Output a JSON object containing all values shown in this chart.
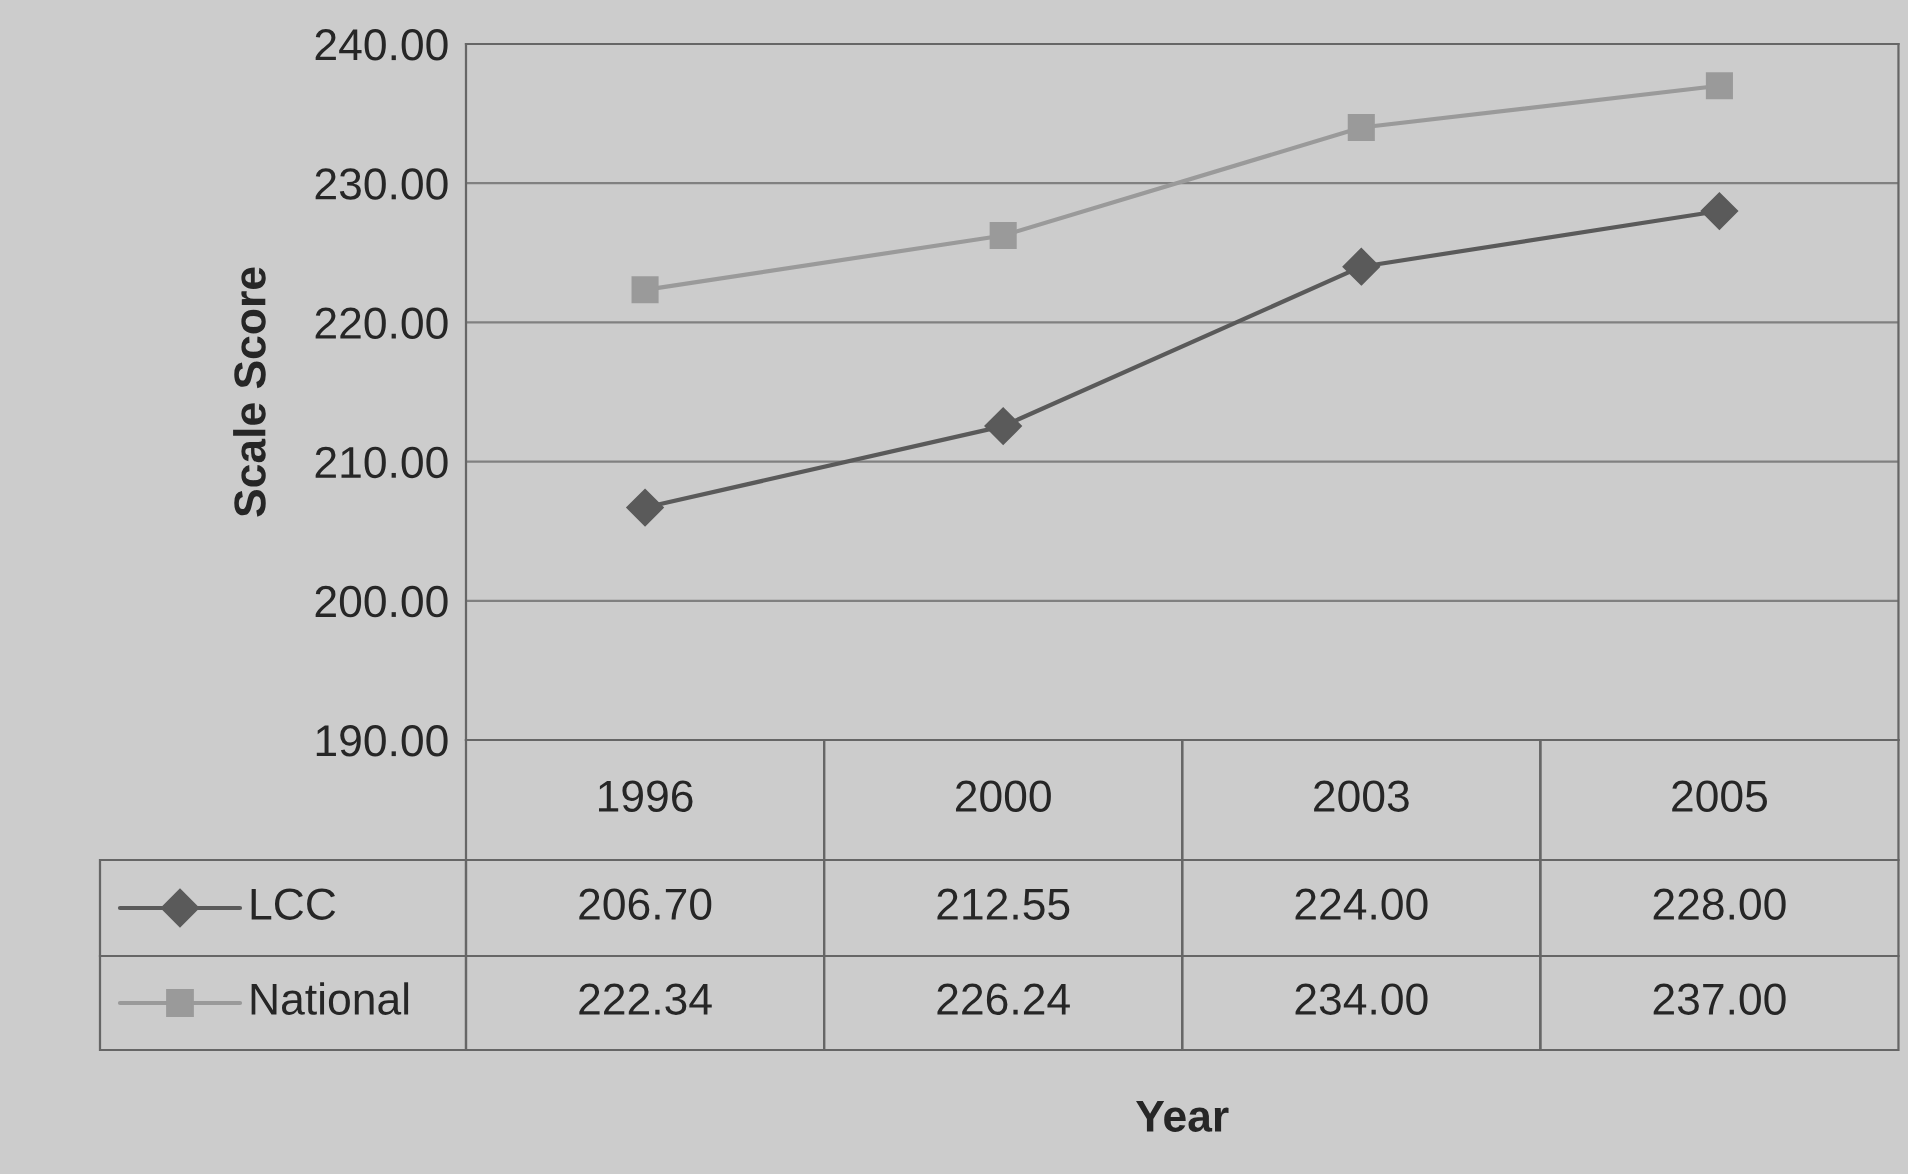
{
  "chart_data": {
    "type": "line",
    "categories": [
      "1996",
      "2000",
      "2003",
      "2005"
    ],
    "annotations": [
      "Year"
    ],
    "ylabel": "Scale Score",
    "series": [
      {
        "name": "LCC",
        "color": "#5a5a5a",
        "marker": "diamond",
        "values": [
          206.7,
          212.55,
          224.0,
          228.0
        ],
        "value_labels": [
          "206.70",
          "212.55",
          "224.00",
          "228.00"
        ]
      },
      {
        "name": "National",
        "color": "#9a9a9a",
        "marker": "square",
        "values": [
          222.34,
          226.24,
          234.0,
          237.0
        ],
        "value_labels": [
          "222.34",
          "226.24",
          "234.00",
          "237.00"
        ]
      }
    ],
    "ylim": [
      190,
      240
    ],
    "yticks": [
      {
        "value": 190,
        "label": "190.00"
      },
      {
        "value": 200,
        "label": "200.00"
      },
      {
        "value": 210,
        "label": "210.00"
      },
      {
        "value": 220,
        "label": "220.00"
      },
      {
        "value": 230,
        "label": "230.00"
      },
      {
        "value": 240,
        "label": "240.00"
      }
    ],
    "grid": "y",
    "legend": "bottom left",
    "line_style": "solid"
  }
}
